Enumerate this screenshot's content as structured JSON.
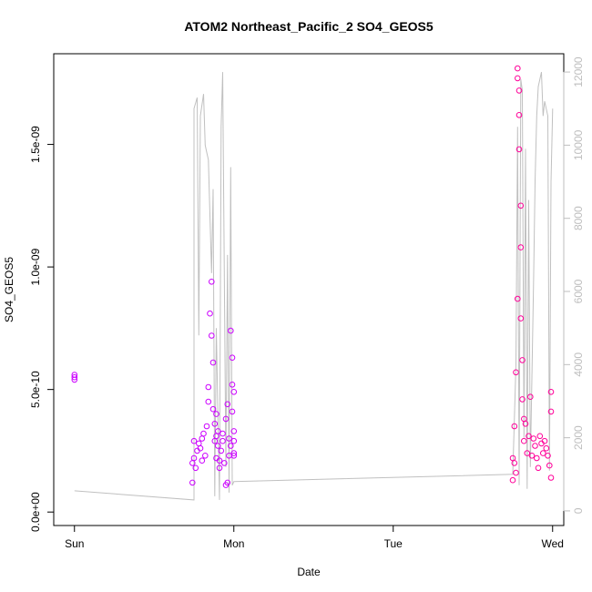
{
  "chart_data": {
    "type": "scatter",
    "title": "ATOM2 Northeast_Pacific_2 SO4_GEOS5",
    "xlabel": "Date",
    "ylabel": "SO4_GEOS5",
    "x_ticks": [
      "Sun",
      "Mon",
      "Tue",
      "Wed"
    ],
    "y_ticks_left": [
      "0.0e+00",
      "5.0e-10",
      "1.0e-09",
      "1.5e-09"
    ],
    "y_ticks_right": [
      "0",
      "2000",
      "4000",
      "6000",
      "8000",
      "10000",
      "12000"
    ],
    "xlim_days": [
      -0.13,
      3.07
    ],
    "ylim_left": [
      -5.5e-11,
      1.87e-09
    ],
    "ylim_right": [
      -400,
      12500
    ],
    "colors": {
      "axis": "#000000",
      "secondary_axis": "#bebebe",
      "altitude_line": "#c0c0c0",
      "points_early": "#cc00ff",
      "points_late": "#ff0099"
    },
    "series": [
      {
        "type": "scatter",
        "x_days": [
          0.0,
          0.0,
          0.0,
          0.74,
          0.74,
          0.75,
          0.75,
          0.76,
          0.77,
          0.78,
          0.79,
          0.8,
          0.8,
          0.81,
          0.82,
          0.83,
          0.84,
          0.84,
          0.85,
          0.86,
          0.86,
          0.87,
          0.87,
          0.88,
          0.88,
          0.89,
          0.89,
          0.89,
          0.9,
          0.9,
          0.91,
          0.91,
          0.92,
          0.93,
          0.93,
          0.94,
          0.95,
          0.95,
          0.96,
          0.96,
          0.97,
          0.97,
          0.98,
          0.98,
          0.99,
          0.99,
          0.99,
          1.0,
          1.0,
          1.0,
          1.0,
          1.0,
          2.75,
          2.75,
          2.76,
          2.76,
          2.77,
          2.77,
          2.78,
          2.78,
          2.78,
          2.79,
          2.79,
          2.79,
          2.8,
          2.8,
          2.8,
          2.81,
          2.81,
          2.82,
          2.82,
          2.83,
          2.84,
          2.85,
          2.86,
          2.87,
          2.88,
          2.89,
          2.9,
          2.91,
          2.92,
          2.93,
          2.94,
          2.95,
          2.96,
          2.97,
          2.98,
          2.99,
          2.99,
          2.99
        ],
        "y": [
          5.6e-10,
          5.5e-10,
          5.4e-10,
          1.2e-10,
          2e-10,
          2.9e-10,
          2.2e-10,
          1.8e-10,
          2.5e-10,
          2.8e-10,
          2.6e-10,
          3e-10,
          2.1e-10,
          3.2e-10,
          2.3e-10,
          3.5e-10,
          4.5e-10,
          5.1e-10,
          8.1e-10,
          9.4e-10,
          7.2e-10,
          6.1e-10,
          4.2e-10,
          3.6e-10,
          2.9e-10,
          2.2e-10,
          3.1e-10,
          4e-10,
          3.3e-10,
          2.7e-10,
          2.1e-10,
          1.8e-10,
          2.5e-10,
          3.2e-10,
          2.9e-10,
          2e-10,
          1.1e-10,
          3.8e-10,
          4.4e-10,
          1.2e-10,
          3e-10,
          2.3e-10,
          2.7e-10,
          7.4e-10,
          6.3e-10,
          5.2e-10,
          4.1e-10,
          2.9e-10,
          2.3e-10,
          3.3e-10,
          4.9e-10,
          2.4e-10,
          1.3e-10,
          2.2e-10,
          3.5e-10,
          2e-10,
          1.6e-10,
          5.7e-10,
          8.7e-10,
          1.77e-09,
          1.81e-09,
          1.72e-09,
          1.62e-09,
          1.48e-09,
          1.25e-09,
          1.08e-09,
          7.9e-10,
          6.2e-10,
          4.6e-10,
          3.8e-10,
          2.9e-10,
          3.6e-10,
          2.4e-10,
          3.1e-10,
          4.7e-10,
          2.3e-10,
          3e-10,
          2.7e-10,
          2.2e-10,
          1.8e-10,
          3.1e-10,
          2.8e-10,
          2.4e-10,
          2.9e-10,
          2.6e-10,
          2.3e-10,
          1.9e-10,
          4.1e-10,
          4.9e-10,
          1.4e-10
        ]
      },
      {
        "type": "line",
        "axis": "right",
        "x_days": [
          0.0,
          0.75,
          0.75,
          0.77,
          0.78,
          0.79,
          0.81,
          0.82,
          0.83,
          0.84,
          0.86,
          0.87,
          0.88,
          0.89,
          0.91,
          0.92,
          0.93,
          0.95,
          0.96,
          0.97,
          0.98,
          0.99,
          1.0,
          2.75,
          2.77,
          2.78,
          2.79,
          2.8,
          2.81,
          2.82,
          2.83,
          2.84,
          2.85,
          2.86,
          2.88,
          2.89,
          2.9,
          2.91,
          2.93,
          2.94,
          2.95,
          2.97,
          2.98,
          2.99,
          3.0
        ],
        "y": [
          550,
          300,
          11000,
          11300,
          4800,
          10800,
          11400,
          10000,
          9800,
          9600,
          6500,
          8800,
          400,
          5000,
          300,
          10500,
          12000,
          1200,
          7000,
          500,
          9400,
          700,
          800,
          1000,
          4000,
          10500,
          700,
          11800,
          11500,
          2000,
          9900,
          600,
          8500,
          1200,
          6200,
          9000,
          10800,
          11600,
          12000,
          10800,
          11200,
          10800,
          1100,
          9000,
          11000
        ]
      }
    ]
  }
}
